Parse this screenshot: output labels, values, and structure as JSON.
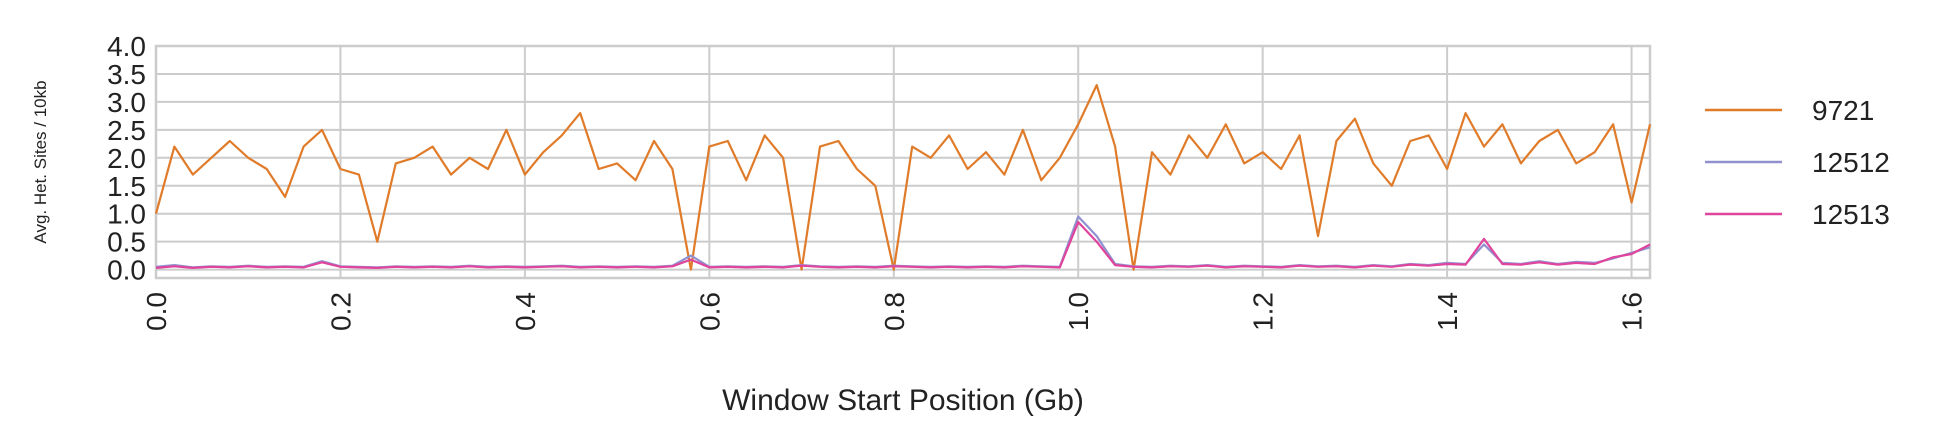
{
  "chart_data": {
    "type": "line",
    "y_label": "Avg. Het. Sites / 10kb",
    "x_label": "Window Start Position (Gb)",
    "x": [
      0.0,
      0.02,
      0.04,
      0.06,
      0.08,
      0.1,
      0.12,
      0.14,
      0.16,
      0.18,
      0.2,
      0.22,
      0.24,
      0.26,
      0.28,
      0.3,
      0.32,
      0.34,
      0.36,
      0.38,
      0.4,
      0.42,
      0.44,
      0.46,
      0.48,
      0.5,
      0.52,
      0.54,
      0.56,
      0.58,
      0.6,
      0.62,
      0.64,
      0.66,
      0.68,
      0.7,
      0.72,
      0.74,
      0.76,
      0.78,
      0.8,
      0.82,
      0.84,
      0.86,
      0.88,
      0.9,
      0.92,
      0.94,
      0.96,
      0.98,
      1.0,
      1.02,
      1.04,
      1.06,
      1.08,
      1.1,
      1.12,
      1.14,
      1.16,
      1.18,
      1.2,
      1.22,
      1.24,
      1.26,
      1.28,
      1.3,
      1.32,
      1.34,
      1.36,
      1.38,
      1.4,
      1.42,
      1.44,
      1.46,
      1.48,
      1.5,
      1.52,
      1.54,
      1.56,
      1.58,
      1.6,
      1.62
    ],
    "series": [
      {
        "name": "9721",
        "color": "#e07b2a",
        "values": [
          1.0,
          2.2,
          1.7,
          2.0,
          2.3,
          2.0,
          1.8,
          1.3,
          2.2,
          2.5,
          1.8,
          1.7,
          0.5,
          1.9,
          2.0,
          2.2,
          1.7,
          2.0,
          1.8,
          2.5,
          1.7,
          2.1,
          2.4,
          2.8,
          1.8,
          1.9,
          1.6,
          2.3,
          1.8,
          0.0,
          2.2,
          2.3,
          1.6,
          2.4,
          2.0,
          0.0,
          2.2,
          2.3,
          1.8,
          1.5,
          0.0,
          2.2,
          2.0,
          2.4,
          1.8,
          2.1,
          1.7,
          2.5,
          1.6,
          2.0,
          2.6,
          3.3,
          2.2,
          0.0,
          2.1,
          1.7,
          2.4,
          2.0,
          2.6,
          1.9,
          2.1,
          1.8,
          2.4,
          0.6,
          2.3,
          2.7,
          1.9,
          1.5,
          2.3,
          2.4,
          1.8,
          2.8,
          2.2,
          2.6,
          1.9,
          2.3,
          2.5,
          1.9,
          2.1,
          2.6,
          1.2,
          2.6
        ]
      },
      {
        "name": "12512",
        "color": "#9191d0",
        "values": [
          0.05,
          0.08,
          0.04,
          0.06,
          0.05,
          0.07,
          0.05,
          0.06,
          0.05,
          0.15,
          0.06,
          0.05,
          0.04,
          0.06,
          0.05,
          0.06,
          0.05,
          0.07,
          0.05,
          0.06,
          0.05,
          0.06,
          0.07,
          0.05,
          0.06,
          0.05,
          0.06,
          0.05,
          0.07,
          0.25,
          0.05,
          0.06,
          0.05,
          0.06,
          0.05,
          0.08,
          0.06,
          0.05,
          0.06,
          0.05,
          0.07,
          0.06,
          0.05,
          0.06,
          0.05,
          0.06,
          0.05,
          0.07,
          0.06,
          0.05,
          0.95,
          0.6,
          0.1,
          0.06,
          0.05,
          0.07,
          0.06,
          0.08,
          0.05,
          0.07,
          0.06,
          0.05,
          0.08,
          0.06,
          0.07,
          0.05,
          0.08,
          0.06,
          0.1,
          0.08,
          0.12,
          0.1,
          0.45,
          0.12,
          0.1,
          0.15,
          0.1,
          0.14,
          0.12,
          0.2,
          0.3,
          0.4
        ]
      },
      {
        "name": "12513",
        "color": "#e0449c",
        "values": [
          0.03,
          0.06,
          0.03,
          0.05,
          0.04,
          0.06,
          0.04,
          0.05,
          0.04,
          0.13,
          0.05,
          0.04,
          0.03,
          0.05,
          0.04,
          0.05,
          0.04,
          0.06,
          0.04,
          0.05,
          0.04,
          0.05,
          0.06,
          0.04,
          0.05,
          0.04,
          0.05,
          0.04,
          0.06,
          0.18,
          0.04,
          0.05,
          0.04,
          0.05,
          0.04,
          0.07,
          0.05,
          0.04,
          0.05,
          0.04,
          0.06,
          0.05,
          0.04,
          0.05,
          0.04,
          0.05,
          0.04,
          0.06,
          0.05,
          0.04,
          0.85,
          0.5,
          0.08,
          0.05,
          0.04,
          0.06,
          0.05,
          0.07,
          0.04,
          0.06,
          0.05,
          0.04,
          0.07,
          0.05,
          0.06,
          0.04,
          0.07,
          0.05,
          0.09,
          0.07,
          0.1,
          0.09,
          0.55,
          0.1,
          0.09,
          0.13,
          0.09,
          0.12,
          0.1,
          0.22,
          0.28,
          0.45
        ]
      }
    ],
    "xlim": [
      0,
      1.62
    ],
    "ylim": [
      -0.15,
      4.0
    ],
    "xticks": [
      {
        "value": 0,
        "label": "0.0"
      },
      0.2,
      0.4,
      0.6,
      0.8,
      {
        "value": 1,
        "label": "1.0"
      },
      1.2,
      1.4,
      1.6
    ],
    "yticks": [
      {
        "value": 0,
        "label": "0.0"
      },
      0.5,
      {
        "value": 1,
        "label": "1.0"
      },
      1.5,
      {
        "value": 2,
        "label": "2.0"
      },
      2.5,
      {
        "value": 3,
        "label": "3.0"
      },
      3.5,
      {
        "value": 4,
        "label": "4.0"
      }
    ],
    "grid": true,
    "legend": "outside-right"
  }
}
